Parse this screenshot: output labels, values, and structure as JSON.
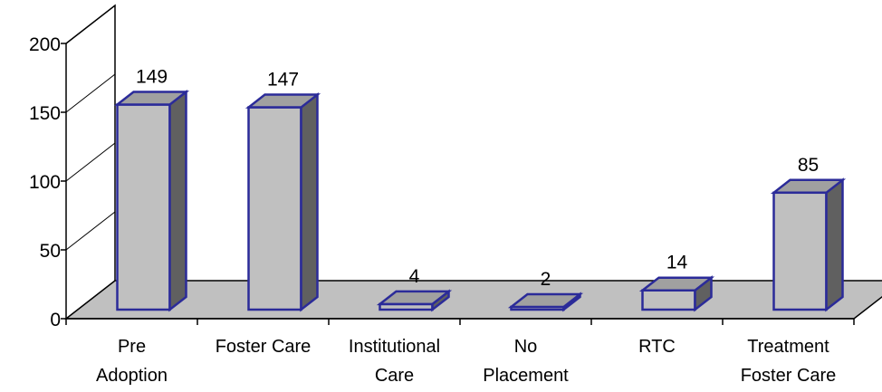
{
  "chart_data": {
    "type": "bar",
    "style": "3d-column",
    "categories": [
      [
        "Pre",
        "Adoption"
      ],
      [
        "Foster Care"
      ],
      [
        "Institutional",
        "Care"
      ],
      [
        "No",
        "Placement"
      ],
      [
        "RTC"
      ],
      [
        "Treatment",
        "Foster Care"
      ]
    ],
    "values": [
      149,
      147,
      4,
      2,
      14,
      85
    ],
    "data_labels": [
      "149",
      "147",
      "4",
      "2",
      "14",
      "85"
    ],
    "ylim": [
      0,
      200
    ],
    "yticks": [
      "0",
      "50",
      "100",
      "150",
      "200"
    ],
    "grid": false,
    "legend": "none",
    "colors": {
      "bar_front": "#c0c0c0",
      "bar_side": "#606060",
      "bar_top": "#a0a0a0",
      "bar_outline": "#2b2b99",
      "floor": "#c0c0c0",
      "axis": "#000000"
    }
  }
}
